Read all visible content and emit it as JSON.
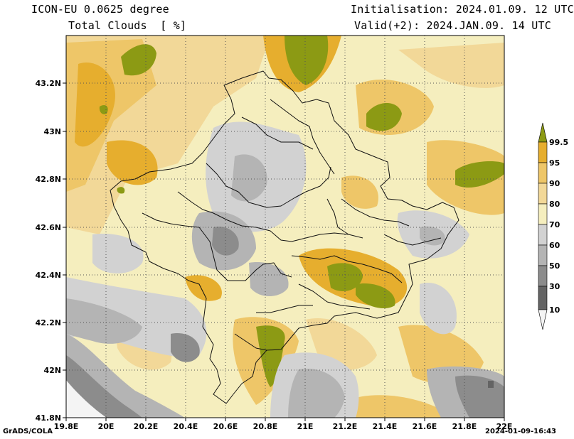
{
  "header": {
    "model": "ICON-EU 0.0625 degree",
    "field": "Total Clouds  [ %]",
    "initialisation": "Initialisation: 2024.01.09. 12 UTC",
    "valid": "Valid(+2): 2024.JAN.09. 14 UTC"
  },
  "axes": {
    "lon_labels": [
      "19.8E",
      "20E",
      "20.2E",
      "20.4E",
      "20.6E",
      "20.8E",
      "21E",
      "21.2E",
      "21.4E",
      "21.6E",
      "21.8E",
      "22E"
    ],
    "lat_labels": [
      "43.2N",
      "43N",
      "42.8N",
      "42.6N",
      "42.4N",
      "42.2N",
      "42N",
      "41.8N"
    ],
    "lon_range": [
      19.8,
      22.0
    ],
    "lat_range": [
      41.8,
      43.4
    ]
  },
  "colorbar": {
    "labels": [
      "99.5",
      "95",
      "90",
      "80",
      "70",
      "60",
      "50",
      "30",
      "10"
    ],
    "colors": [
      "#8c9a14",
      "#e6ae2e",
      "#eec668",
      "#f2d898",
      "#f5eebe",
      "#d2d2d2",
      "#b4b4b4",
      "#8c8c8c",
      "#646464",
      "#f4f4f4"
    ]
  },
  "footer": {
    "credit": "GrADS/COLA",
    "timestamp": "2024-01-09-16:43"
  }
}
